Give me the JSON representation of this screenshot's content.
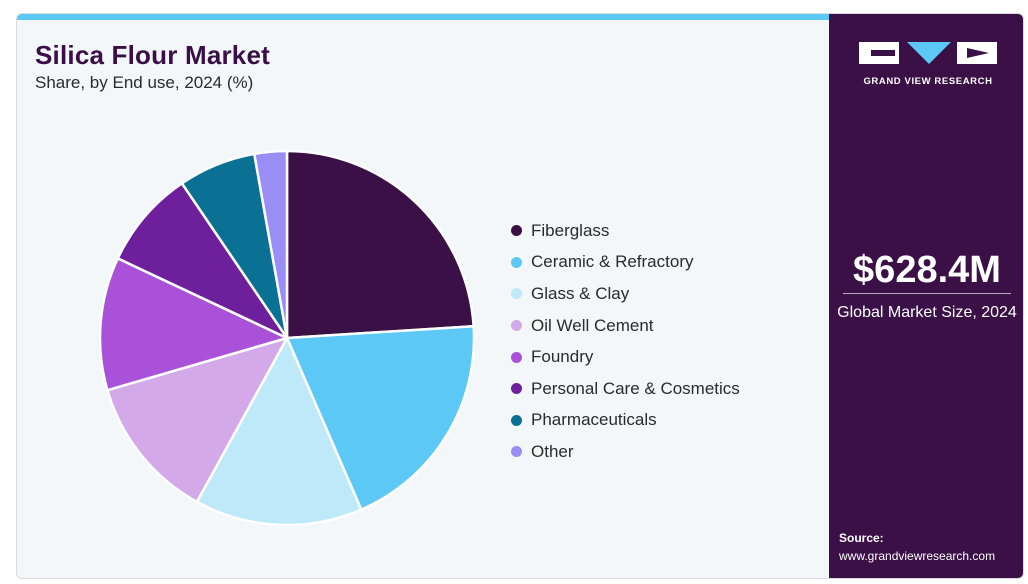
{
  "header": {
    "title": "Silica Flour Market",
    "subtitle": "Share, by End use, 2024 (%)"
  },
  "brand": {
    "logo_text": "GRAND VIEW RESEARCH",
    "accent_color": "#5bc8f5",
    "panel_color": "#3a1047"
  },
  "summary": {
    "value": "$628.4M",
    "label": "Global Market Size, 2024"
  },
  "source": {
    "label": "Source:",
    "url": "www.grandviewresearch.com"
  },
  "chart_data": {
    "type": "pie",
    "title": "Silica Flour Market",
    "subtitle": "Share, by End use, 2024 (%)",
    "legend_position": "right",
    "categories": [
      "Fiberglass",
      "Ceramic & Refractory",
      "Glass & Clay",
      "Oil Well Cement",
      "Foundry",
      "Personal Care & Cosmetics",
      "Pharmaceuticals",
      "Other"
    ],
    "values": [
      24.0,
      19.5,
      14.5,
      12.5,
      11.5,
      8.5,
      6.7,
      2.8
    ],
    "colors": [
      "#3a1047",
      "#5bc8f5",
      "#bde9f8",
      "#d4a9ea",
      "#a951d8",
      "#6e1f9c",
      "#0b7194",
      "#9a8df5"
    ]
  }
}
